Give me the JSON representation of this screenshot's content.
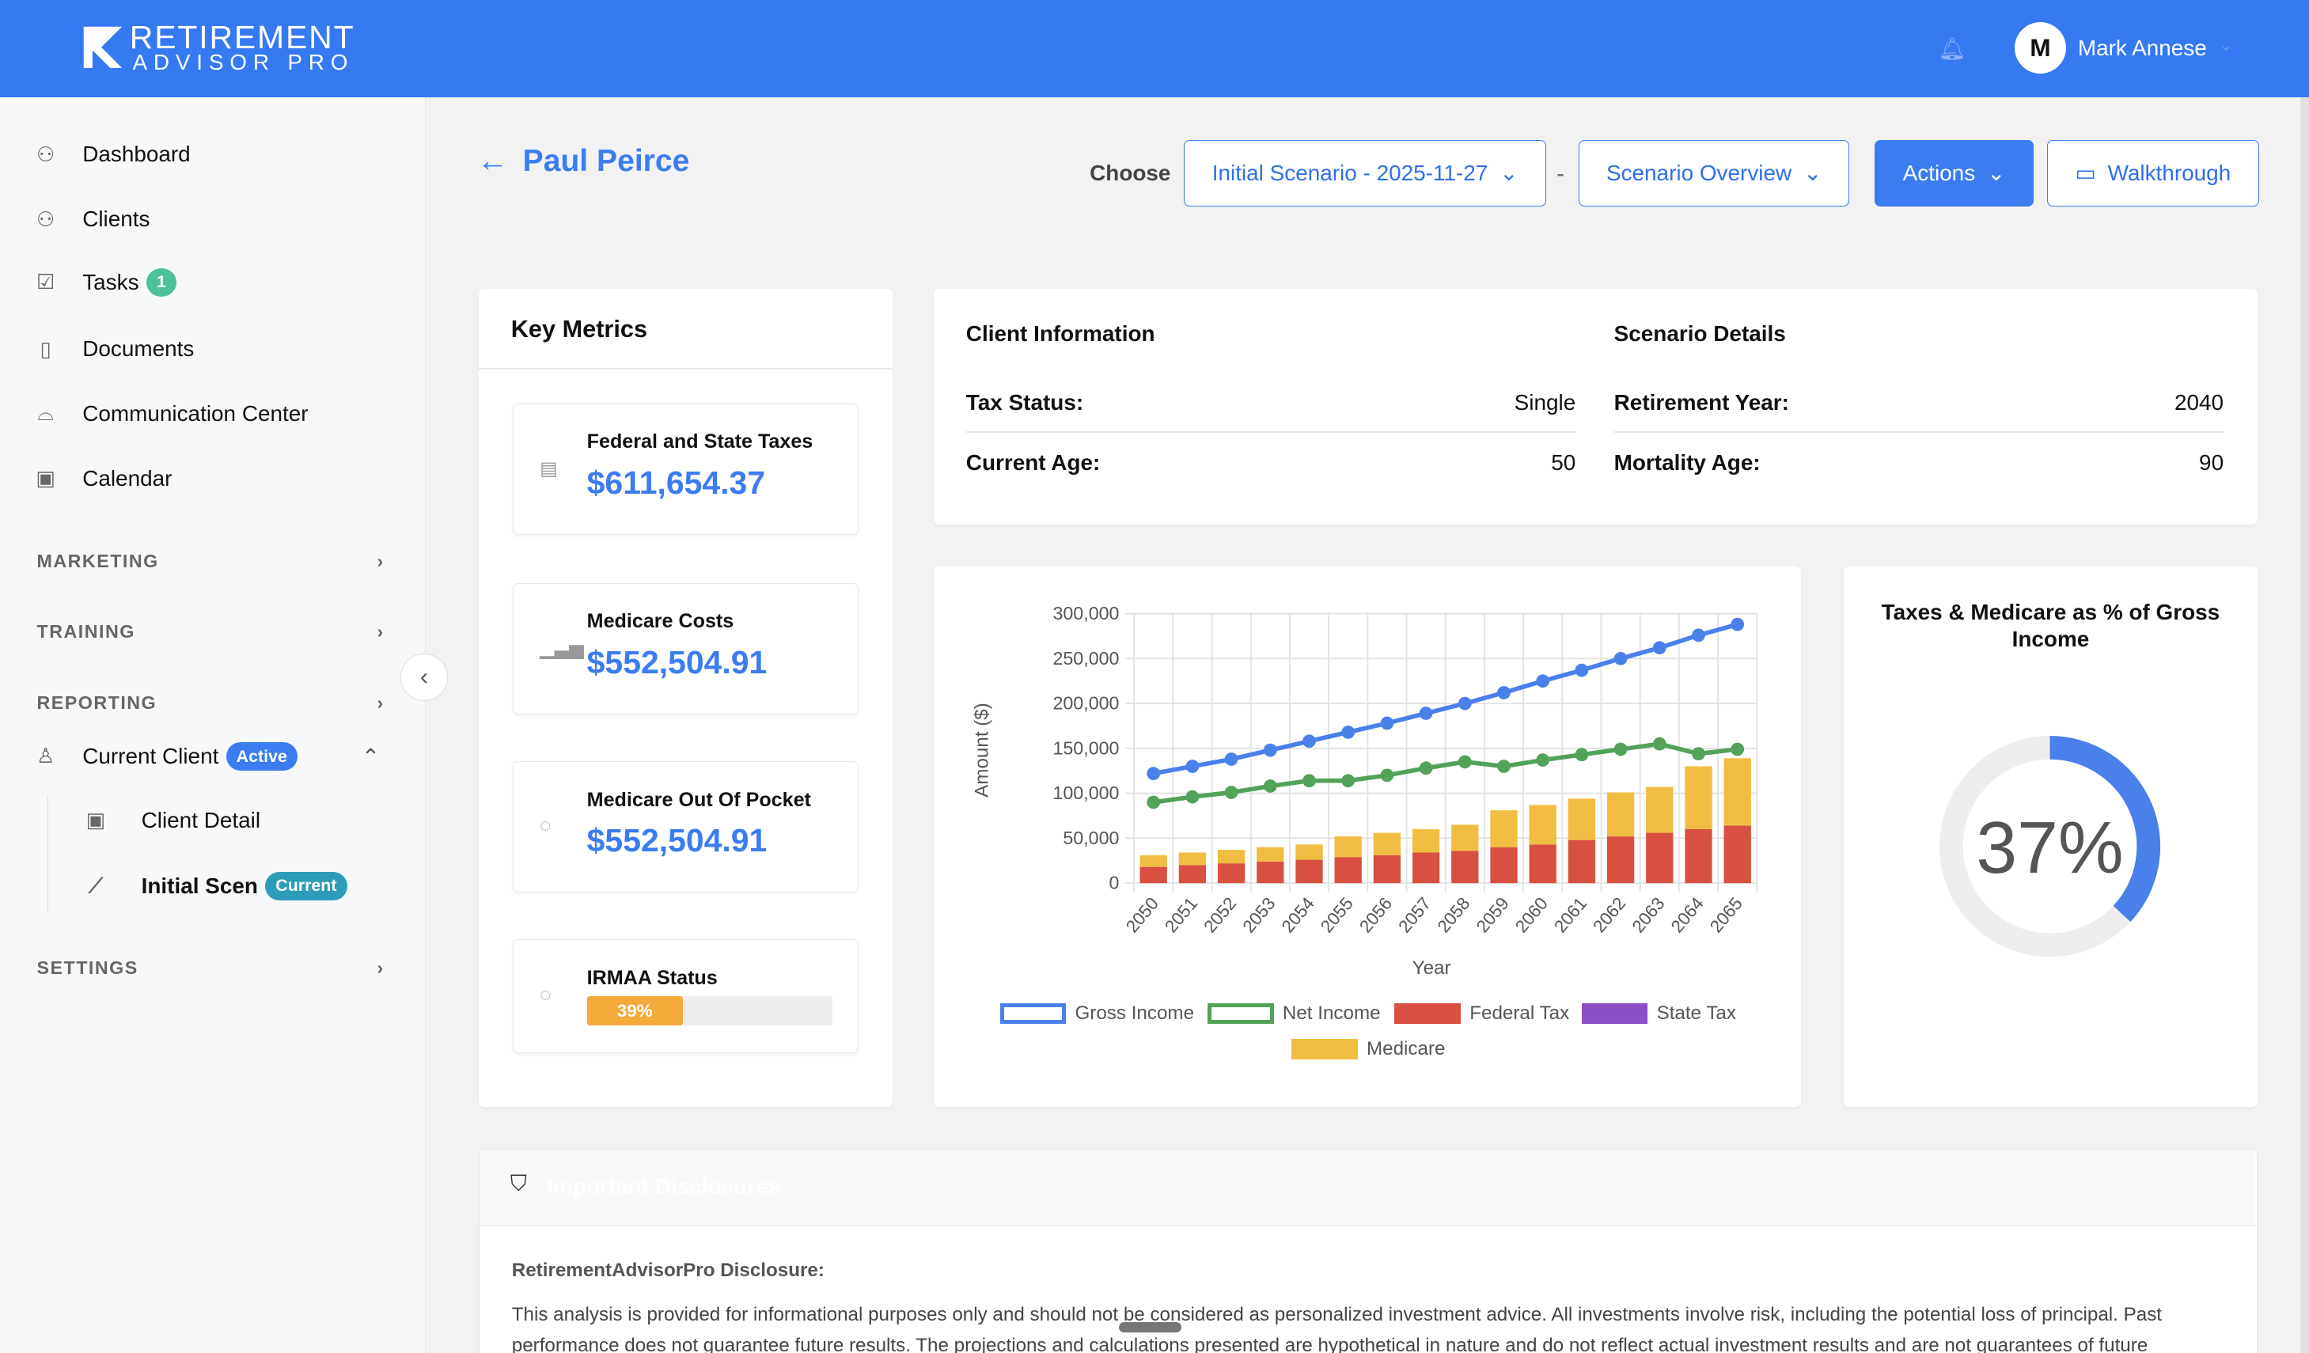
{
  "header": {
    "logo_line1": "RETIREMENT",
    "logo_line2": "ADVISOR PRO",
    "user_initial": "M",
    "user_name": "Mark Annese"
  },
  "sidebar": {
    "items": [
      {
        "label": "Dashboard",
        "icon": "users-icon"
      },
      {
        "label": "Clients",
        "icon": "users-icon"
      },
      {
        "label": "Tasks",
        "icon": "checkbox-icon",
        "badge": "1"
      },
      {
        "label": "Documents",
        "icon": "document-icon"
      },
      {
        "label": "Communication Center",
        "icon": "inbox-icon"
      },
      {
        "label": "Calendar",
        "icon": "calendar-icon"
      }
    ],
    "sections": [
      "MARKETING",
      "TRAINING",
      "REPORTING"
    ],
    "current_client": {
      "label": "Current Client",
      "badge": "Active"
    },
    "sub_items": [
      {
        "label": "Client Detail"
      },
      {
        "label": "Initial Scen",
        "badge": "Current"
      }
    ],
    "settings": "SETTINGS"
  },
  "page": {
    "client_name": "Paul Peirce",
    "choose_label": "Choose",
    "scenario": "Initial Scenario - 2025-11-27",
    "separator": "-",
    "view": "Scenario Overview",
    "actions": "Actions",
    "walkthrough": "Walkthrough"
  },
  "key_metrics": {
    "title": "Key Metrics",
    "items": [
      {
        "label": "Federal and State Taxes",
        "value": "$611,654.37"
      },
      {
        "label": "Medicare Costs",
        "value": "$552,504.91"
      },
      {
        "label": "Medicare Out Of Pocket",
        "value": "$552,504.91"
      }
    ],
    "irmaa": {
      "label": "IRMAA Status",
      "value": "39%",
      "percent": 39,
      "color": "#f4a93b"
    }
  },
  "client_info": {
    "title": "Client Information",
    "tax_status_label": "Tax Status:",
    "tax_status": "Single",
    "age_label": "Current Age:",
    "age": "50"
  },
  "scenario_details": {
    "title": "Scenario Details",
    "retirement_label": "Retirement Year:",
    "retirement_year": "2040",
    "mortality_label": "Mortality Age:",
    "mortality_age": "90"
  },
  "chart_data": {
    "type": "bar",
    "xlabel": "Year",
    "ylabel": "Amount ($)",
    "ylim": [
      0,
      300000
    ],
    "yticks": [
      "0",
      "50,000",
      "100,000",
      "150,000",
      "200,000",
      "250,000",
      "300,000"
    ],
    "categories": [
      "2050",
      "2051",
      "2052",
      "2053",
      "2054",
      "2055",
      "2056",
      "2057",
      "2058",
      "2059",
      "2060",
      "2061",
      "2062",
      "2063",
      "2064",
      "2065"
    ],
    "grid": true,
    "legend": "bottom",
    "series": [
      {
        "name": "Gross Income",
        "kind": "line",
        "color": "#4a80ea",
        "values": [
          122000,
          130000,
          138000,
          148000,
          158000,
          168000,
          178000,
          189000,
          200000,
          212000,
          225000,
          237000,
          250000,
          262000,
          276000,
          288000
        ]
      },
      {
        "name": "Net Income",
        "kind": "line",
        "color": "#52a25a",
        "values": [
          90000,
          96000,
          101000,
          108000,
          114000,
          114000,
          120000,
          128000,
          135000,
          130000,
          137000,
          143000,
          149000,
          155000,
          144000,
          149000
        ]
      },
      {
        "name": "Federal Tax",
        "kind": "stacked-bar",
        "color": "#d85040",
        "values": [
          18000,
          20000,
          22000,
          24000,
          26000,
          29000,
          31000,
          34000,
          36000,
          40000,
          43000,
          48000,
          52000,
          56000,
          60000,
          64000
        ]
      },
      {
        "name": "State Tax",
        "kind": "stacked-bar",
        "color": "#8e4ec6",
        "values": [
          0,
          0,
          0,
          0,
          0,
          0,
          0,
          0,
          0,
          0,
          0,
          0,
          0,
          0,
          0,
          0
        ]
      },
      {
        "name": "Medicare",
        "kind": "stacked-bar",
        "color": "#f0bd42",
        "values": [
          13000,
          14000,
          15000,
          16000,
          17000,
          23000,
          25000,
          26000,
          29000,
          41000,
          44000,
          46000,
          49000,
          51000,
          70000,
          75000
        ]
      }
    ]
  },
  "donut": {
    "title": "Taxes & Medicare as % of Gross Income",
    "value": "37%",
    "percent": 37,
    "color": "#4a80ea"
  },
  "disclosure": {
    "title": "Important Disclosures",
    "subtitle": "RetirementAdvisorPro Disclosure:",
    "text": "This analysis is provided for informational purposes only and should not be considered as personalized investment advice. All investments involve risk, including the potential loss of principal. Past performance does not guarantee future results. The projections and calculations presented are hypothetical in nature and do not reflect actual investment results and are not guarantees of future"
  }
}
